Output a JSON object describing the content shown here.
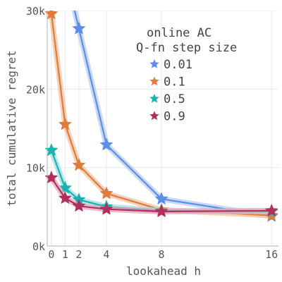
{
  "chart_data": {
    "type": "line",
    "title": "",
    "xlabel": "lookahead h",
    "ylabel": "total cumulative regret",
    "x": [
      0,
      1,
      2,
      4,
      8,
      16
    ],
    "x_tick_labels": [
      "0",
      "1",
      "2",
      "4",
      "8",
      "16"
    ],
    "y_ticks": [
      0,
      10000,
      20000,
      30000
    ],
    "y_tick_labels": [
      "0k",
      "10k",
      "20k",
      "30k"
    ],
    "xlim": [
      -0.3,
      16.5
    ],
    "ylim": [
      0,
      30000
    ],
    "grid": true,
    "legend": {
      "title_lines": [
        "online AC",
        "Q-fn step size"
      ],
      "placement": "top-right"
    },
    "series": [
      {
        "name": "0.01",
        "color": "#5b8ee6",
        "band": "#b8cdf2",
        "x": [
          2,
          4,
          8,
          16
        ],
        "values": [
          27700,
          12900,
          6000,
          3800
        ],
        "entry_from_y": 31000
      },
      {
        "name": "0.1",
        "color": "#e07b39",
        "band": "#f2c3a3",
        "x": [
          0,
          1,
          2,
          4,
          8,
          16
        ],
        "values": [
          29600,
          15500,
          10300,
          6700,
          4600,
          3900
        ]
      },
      {
        "name": "0.5",
        "color": "#17b3b3",
        "band": "#a3dede",
        "x": [
          0,
          1,
          2,
          4,
          8,
          16
        ],
        "values": [
          12200,
          7400,
          5900,
          5000,
          4500,
          4400
        ]
      },
      {
        "name": "0.9",
        "color": "#b0305c",
        "band": "#e3a6bb",
        "x": [
          0,
          1,
          2,
          4,
          8,
          16
        ],
        "values": [
          8700,
          6100,
          5100,
          4700,
          4400,
          4500
        ]
      }
    ]
  }
}
